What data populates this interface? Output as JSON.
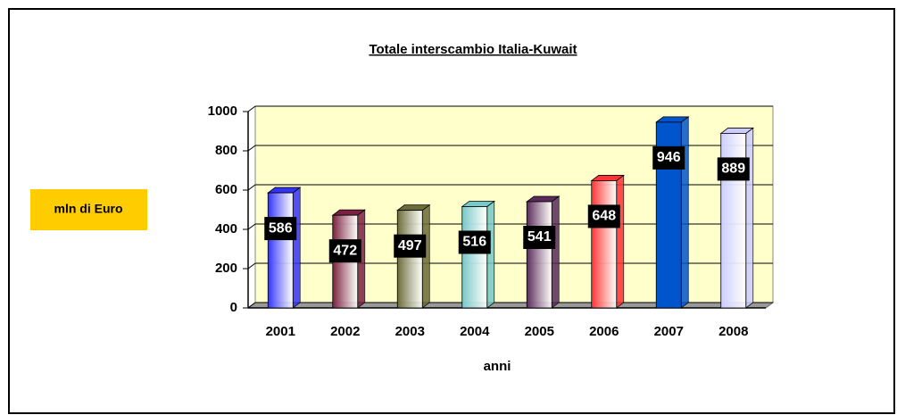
{
  "chart_data": {
    "type": "bar",
    "title": "Totale interscambio Italia-Kuwait",
    "y_label": "mln di Euro",
    "x_label": "anni",
    "categories": [
      "2001",
      "2002",
      "2003",
      "2004",
      "2005",
      "2006",
      "2007",
      "2008"
    ],
    "values": [
      586,
      472,
      497,
      516,
      541,
      648,
      946,
      889
    ],
    "colors": [
      "#3333ff",
      "#7a2040",
      "#6b6b3a",
      "#77c8c8",
      "#5a2a5a",
      "#ff3333",
      "#0055cc",
      "#ccccff"
    ],
    "ylim": [
      0,
      1000
    ],
    "yticks": [
      0,
      200,
      400,
      600,
      800,
      1000
    ],
    "grid": true
  }
}
